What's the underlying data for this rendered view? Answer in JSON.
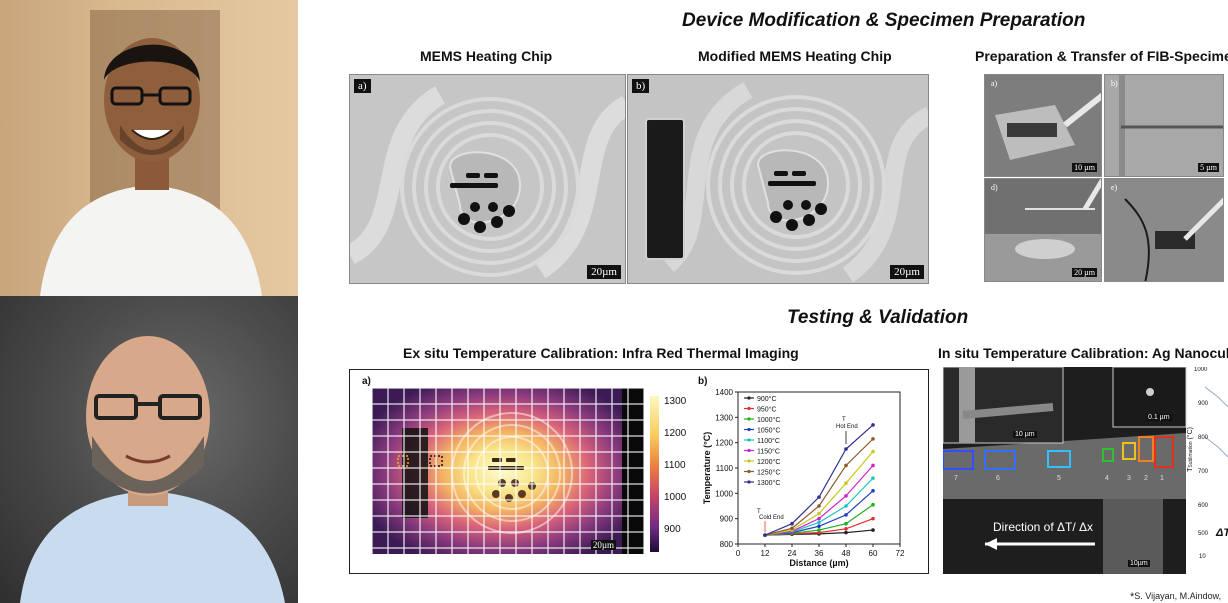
{
  "sections": {
    "top_title": "Device Modification & Specimen Preparation",
    "bottom_title": "Testing & Validation"
  },
  "subtitles": {
    "mems": "MEMS Heating Chip",
    "modified_mems": "Modified MEMS Heating Chip",
    "fib": "Preparation & Transfer of FIB-Specime",
    "ex_situ": "Ex situ Temperature Calibration: Infra Red Thermal Imaging",
    "in_situ": "In situ Temperature Calibration: Ag Nanocul"
  },
  "panels": {
    "mems_label": "a)",
    "mems_scale": "20µm",
    "modified_label": "b)",
    "modified_scale": "20µm",
    "fib_labels": [
      "a)",
      "b)",
      "d)",
      "e)"
    ],
    "fib_scales": [
      "10 µm",
      "5 µm",
      "20 µm"
    ]
  },
  "thermal": {
    "label_a": "a)",
    "label_b": "b)",
    "scale": "20µm",
    "colorbar_ticks": [
      "1300",
      "1200",
      "1100",
      "1000",
      "900"
    ]
  },
  "chart_data": {
    "type": "line",
    "x": [
      12,
      24,
      36,
      48,
      60
    ],
    "xlabel": "Distance (µm)",
    "ylabel": "Temperature (°C)",
    "xlim": [
      0,
      72
    ],
    "ylim": [
      800,
      1400
    ],
    "xticks": [
      "0",
      "12",
      "24",
      "36",
      "48",
      "60",
      "72"
    ],
    "yticks": [
      "800",
      "900",
      "1000",
      "1100",
      "1200",
      "1300",
      "1400"
    ],
    "annotations": [
      "T",
      "Hot End",
      "T",
      "Cold End"
    ],
    "series": [
      {
        "name": "900°C",
        "color": "#222222",
        "values": [
          835,
          838,
          840,
          845,
          855
        ]
      },
      {
        "name": "950°C",
        "color": "#e03030",
        "values": [
          835,
          840,
          845,
          860,
          900
        ]
      },
      {
        "name": "1000°C",
        "color": "#20b020",
        "values": [
          835,
          842,
          855,
          880,
          955
        ]
      },
      {
        "name": "1050°C",
        "color": "#2040c0",
        "values": [
          835,
          845,
          870,
          915,
          1010
        ]
      },
      {
        "name": "1100°C",
        "color": "#20c0c0",
        "values": [
          835,
          848,
          885,
          950,
          1060
        ]
      },
      {
        "name": "1150°C",
        "color": "#d020d0",
        "values": [
          835,
          850,
          900,
          990,
          1110
        ]
      },
      {
        "name": "1200°C",
        "color": "#c8c820",
        "values": [
          835,
          855,
          920,
          1040,
          1165
        ]
      },
      {
        "name": "1250°C",
        "color": "#8b5a2b",
        "values": [
          835,
          862,
          950,
          1110,
          1215
        ]
      },
      {
        "name": "1300°C",
        "color": "#303090",
        "values": [
          835,
          880,
          985,
          1175,
          1270
        ]
      }
    ]
  },
  "in_situ": {
    "inset_scale_1": "10 µm",
    "inset_scale_2": "0.1 µm",
    "main_scale": "10µm",
    "direction_text": "Direction of ΔT/ Δx",
    "region_numbers": [
      "7",
      "6",
      "5",
      "4",
      "3",
      "2",
      "1"
    ],
    "side_ticks": [
      "1000",
      "900",
      "800",
      "700",
      "600",
      "500"
    ],
    "side_ylabel": "T",
    "side_ylabel_sub": "Sublimation",
    "side_ylabel_unit": "(°C)",
    "side_partial": "ΔT",
    "side_xtick": "10"
  },
  "footnote": "S. Vijayan, M.Aindow,",
  "footnote_mark": "*"
}
